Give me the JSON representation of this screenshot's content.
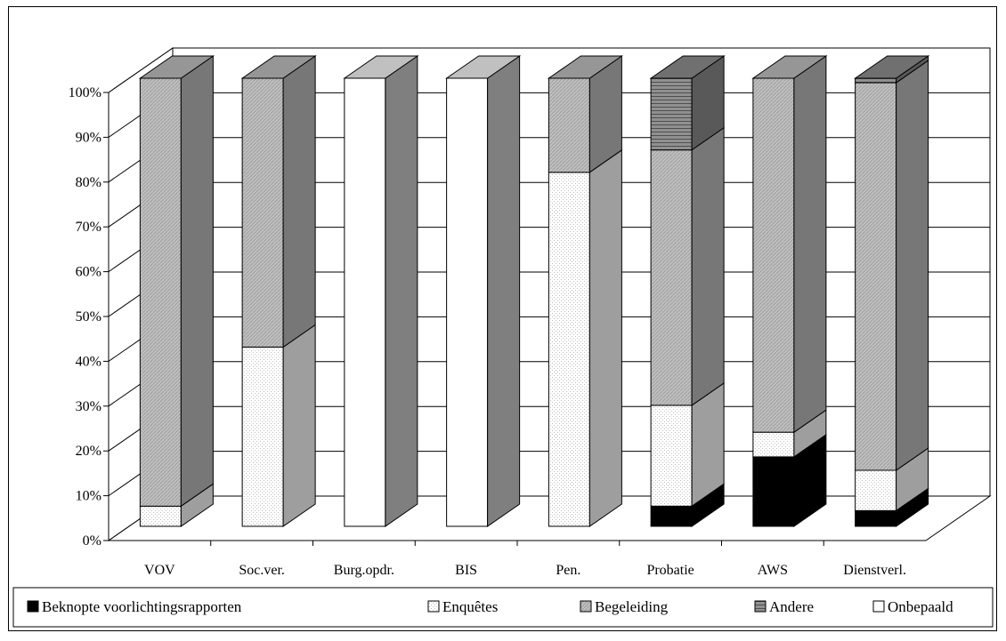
{
  "chart_data": {
    "type": "bar",
    "stacked": true,
    "percent": true,
    "three_d": true,
    "title": "",
    "xlabel": "",
    "ylabel": "",
    "ylim": [
      0,
      100
    ],
    "y_ticks": [
      "0%",
      "10%",
      "20%",
      "30%",
      "40%",
      "50%",
      "60%",
      "70%",
      "80%",
      "90%",
      "100%"
    ],
    "grid": true,
    "legend_position": "bottom",
    "categories": [
      "VOV",
      "Soc.ver.",
      "Burg.opdr.",
      "BIS",
      "Pen.",
      "Probatie",
      "AWS",
      "Dienstverl."
    ],
    "series": [
      {
        "name": "Beknopte voorlichtingsrapporten",
        "color": "#000000",
        "pattern": "solid",
        "values": [
          0,
          0,
          0,
          0,
          0,
          4.5,
          15.5,
          3.5
        ]
      },
      {
        "name": "Enquêtes",
        "color": "#ffffff",
        "pattern": "dots",
        "values": [
          4.5,
          40,
          0,
          0,
          79,
          22.5,
          5.5,
          9
        ]
      },
      {
        "name": "Begeleiding",
        "color": "#c0c0c0",
        "pattern": "diagonal",
        "values": [
          95.5,
          60,
          0,
          0,
          21,
          57,
          79,
          86.5
        ]
      },
      {
        "name": "Andere",
        "color": "#909090",
        "pattern": "horizontal",
        "values": [
          0,
          0,
          0,
          0,
          0,
          16,
          0,
          1
        ]
      },
      {
        "name": "Onbepaald",
        "color": "#ffffff",
        "pattern": "solid",
        "values": [
          0,
          0,
          100,
          100,
          0,
          0,
          0,
          0
        ]
      }
    ]
  }
}
